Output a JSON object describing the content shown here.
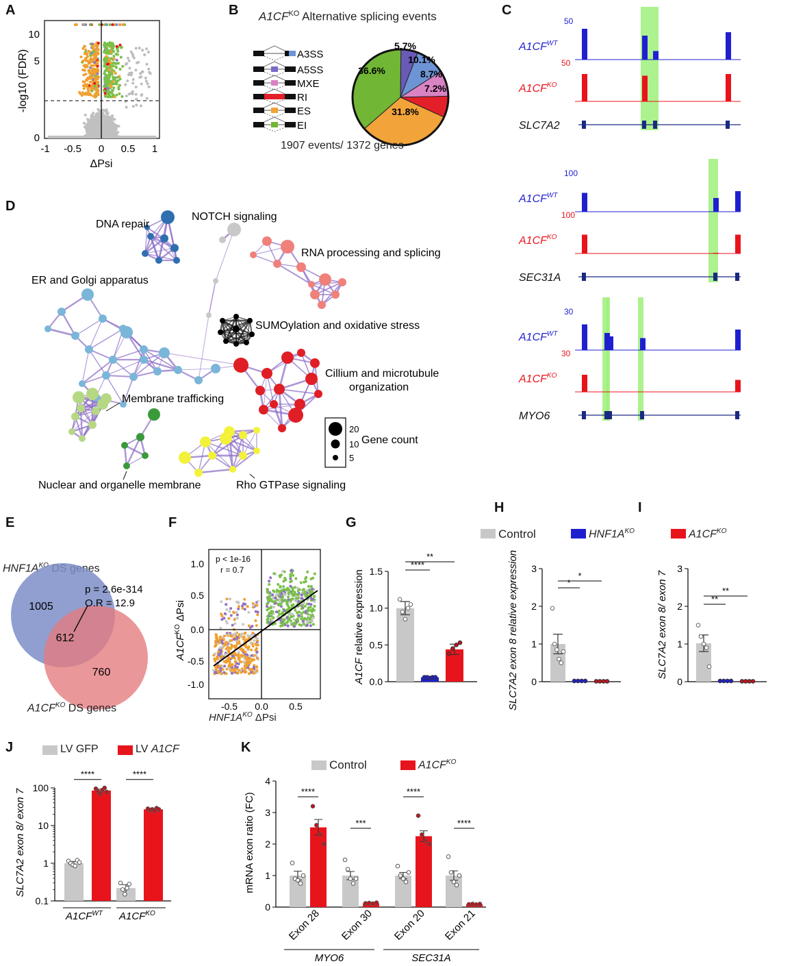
{
  "panels": {
    "A": "A",
    "B": "B",
    "C": "C",
    "D": "D",
    "E": "E",
    "F": "F",
    "G": "G",
    "H": "H",
    "I": "I",
    "J": "J",
    "K": "K"
  },
  "colors": {
    "blue": "#1f1fd0",
    "red": "#e8141c",
    "gray": "#c8c8c8",
    "orange": "#f0a030",
    "green": "#7ac04a",
    "purple": "#9070c8",
    "highlight": "#9ef07a"
  },
  "panelA": {
    "ylabel": "-log10 (FDR)",
    "xlabel": "ΔPsi",
    "yticks": [
      "0",
      "5",
      "10"
    ],
    "xticks": [
      "-1",
      "-0.5",
      "0",
      "0.5",
      "1"
    ]
  },
  "panelB": {
    "title_gene": "A1CF",
    "title_sup": "KO",
    "title_rest": " Alternative splicing events",
    "events": [
      "A3SS",
      "A5SS",
      "MXE",
      "RI",
      "ES",
      "EI"
    ],
    "footer": "1907 events/ 1372 genes",
    "chart_data": {
      "type": "pie",
      "categories": [
        "A3SS",
        "A5SS",
        "MXE",
        "RI",
        "ES",
        "EI"
      ],
      "values": [
        5.7,
        10.1,
        8.7,
        7.2,
        31.8,
        36.6
      ],
      "labels": [
        "5.7%",
        "10.1%",
        "8.7%",
        "7.2%",
        "31.8%",
        "36.6%"
      ],
      "colors": [
        "#6a5ab8",
        "#6d94d4",
        "#d983c4",
        "#e3202a",
        "#f2a43a",
        "#72b636"
      ]
    }
  },
  "panelC": {
    "tracks": [
      {
        "wt": "A1CF",
        "wt_sup": "WT",
        "ko": "A1CF",
        "ko_sup": "KO",
        "gene": "SLC7A2",
        "scale_wt": "50",
        "scale_ko": "50"
      },
      {
        "wt": "A1CF",
        "wt_sup": "WT",
        "ko": "A1CF",
        "ko_sup": "KO",
        "gene": "SEC31A",
        "scale_wt": "100",
        "scale_ko": "100"
      },
      {
        "wt": "A1CF",
        "wt_sup": "WT",
        "ko": "A1CF",
        "ko_sup": "KO",
        "gene": "MYO6",
        "scale_wt": "30",
        "scale_ko": "30"
      }
    ]
  },
  "panelD": {
    "clusters": [
      "DNA repair",
      "NOTCH signaling",
      "RNA processing and splicing",
      "ER and Golgi apparatus",
      "SUMOylation and oxidative stress",
      "Cillium and microtubule organization",
      "Membrane trafficking",
      "Nuclear and organelle membrane",
      "Rho GTPase signaling"
    ],
    "legend_title": "Gene count",
    "legend_sizes": [
      "20",
      "10",
      "5"
    ]
  },
  "panelE": {
    "hnf_label": "HNF1A",
    "hnf_sup": "KO",
    "hnf_rest": " DS genes",
    "a1cf_label": "A1CF",
    "a1cf_sup": "KO",
    "a1cf_rest": " DS genes",
    "left_only": "1005",
    "overlap": "612",
    "right_only": "760",
    "p_value": "p = 2.6e-314",
    "odds_ratio": "O.R = 12.9"
  },
  "panelF": {
    "ylabel_gene": "A1CF",
    "ylabel_sup": "KO",
    "ylabel_rest": " ΔPsi",
    "xlabel_gene": "HNF1A",
    "xlabel_sup": "KO",
    "xlabel_rest": " ΔPsi",
    "stat_p": "p < 1e-16",
    "stat_r": "r = 0.7",
    "yticks": [
      "1.0",
      "0.5",
      "0.0",
      "-0.5",
      "-1.0"
    ],
    "xticks": [
      "-0.5",
      "0.0",
      "0.5"
    ]
  },
  "legend_top": {
    "control": "Control",
    "hnf": "HNF1A",
    "hnf_sup": "KO",
    "a1cf": "A1CF",
    "a1cf_sup": "KO"
  },
  "panelG": {
    "ylabel_gene": "A1CF",
    "ylabel_rest": " relative expression",
    "yticks": [
      "0.0",
      "0.5",
      "1.0",
      "1.5"
    ],
    "sig1": "****",
    "sig2": "**",
    "chart_data": {
      "type": "bar",
      "categories": [
        "Control",
        "HNF1A KO",
        "A1CF KO"
      ],
      "values": [
        1.0,
        0.06,
        0.44
      ],
      "errors": [
        0.09,
        0.01,
        0.07
      ],
      "ylim": [
        0,
        1.5
      ]
    }
  },
  "panelH": {
    "ylabel": "SLC7A2 exon 8 relative expression",
    "yticks": [
      "0",
      "1",
      "2",
      "3"
    ],
    "sig1": "*",
    "sig2": "*",
    "chart_data": {
      "type": "bar",
      "categories": [
        "Control",
        "HNF1A KO",
        "A1CF KO"
      ],
      "values": [
        1.0,
        0.02,
        0.01
      ],
      "errors": [
        0.26,
        0.01,
        0.005
      ],
      "ylim": [
        0,
        3
      ]
    }
  },
  "panelI": {
    "ylabel": "SLC7A2 exon 8/ exon 7",
    "yticks": [
      "0",
      "1",
      "2",
      "3"
    ],
    "sig1": "**",
    "sig2": "**",
    "chart_data": {
      "type": "bar",
      "categories": [
        "Control",
        "HNF1A KO",
        "A1CF KO"
      ],
      "values": [
        1.02,
        0.02,
        0.01
      ],
      "errors": [
        0.22,
        0.01,
        0.005
      ],
      "ylim": [
        0,
        3
      ]
    }
  },
  "panelJ": {
    "legend_gfp": "LV GFP",
    "legend_a1cf_pre": "LV ",
    "legend_a1cf_gene": "A1CF",
    "ylabel": "SLC7A2 exon 8/ exon 7",
    "yticks": [
      "0.1",
      "1",
      "10",
      "100"
    ],
    "group1": "A1CF",
    "group1_sup": "WT",
    "group2": "A1CF",
    "group2_sup": "KO",
    "sig": "****",
    "chart_data": {
      "type": "bar",
      "scale": "log",
      "categories": [
        "A1CF WT",
        "A1CF KO"
      ],
      "series": [
        {
          "name": "LV GFP",
          "values": [
            1.0,
            0.22
          ]
        },
        {
          "name": "LV A1CF",
          "values": [
            85,
            27
          ]
        }
      ],
      "ylim": [
        0.1,
        100
      ]
    }
  },
  "panelK": {
    "legend_control": "Control",
    "legend_ko": "A1CF",
    "legend_ko_sup": "KO",
    "ylabel": "mRNA exon ratio (FC)",
    "yticks": [
      "0",
      "1",
      "2",
      "3",
      "4"
    ],
    "categories": [
      "Exon 28",
      "Exon 30",
      "Exon 20",
      "Exon 21"
    ],
    "gene1": "MYO6",
    "gene2": "SEC31A",
    "sigs": [
      "****",
      "***",
      "****",
      "****"
    ],
    "chart_data": {
      "type": "bar",
      "categories": [
        "Exon 28",
        "Exon 30",
        "Exon 20",
        "Exon 21"
      ],
      "series": [
        {
          "name": "Control",
          "values": [
            1.0,
            1.0,
            1.0,
            1.0
          ],
          "errors": [
            0.14,
            0.13,
            0.1,
            0.15
          ]
        },
        {
          "name": "A1CF KO",
          "values": [
            2.53,
            0.12,
            2.25,
            0.09
          ],
          "errors": [
            0.25,
            0.02,
            0.17,
            0.01
          ]
        }
      ],
      "ylim": [
        0,
        4
      ]
    }
  }
}
